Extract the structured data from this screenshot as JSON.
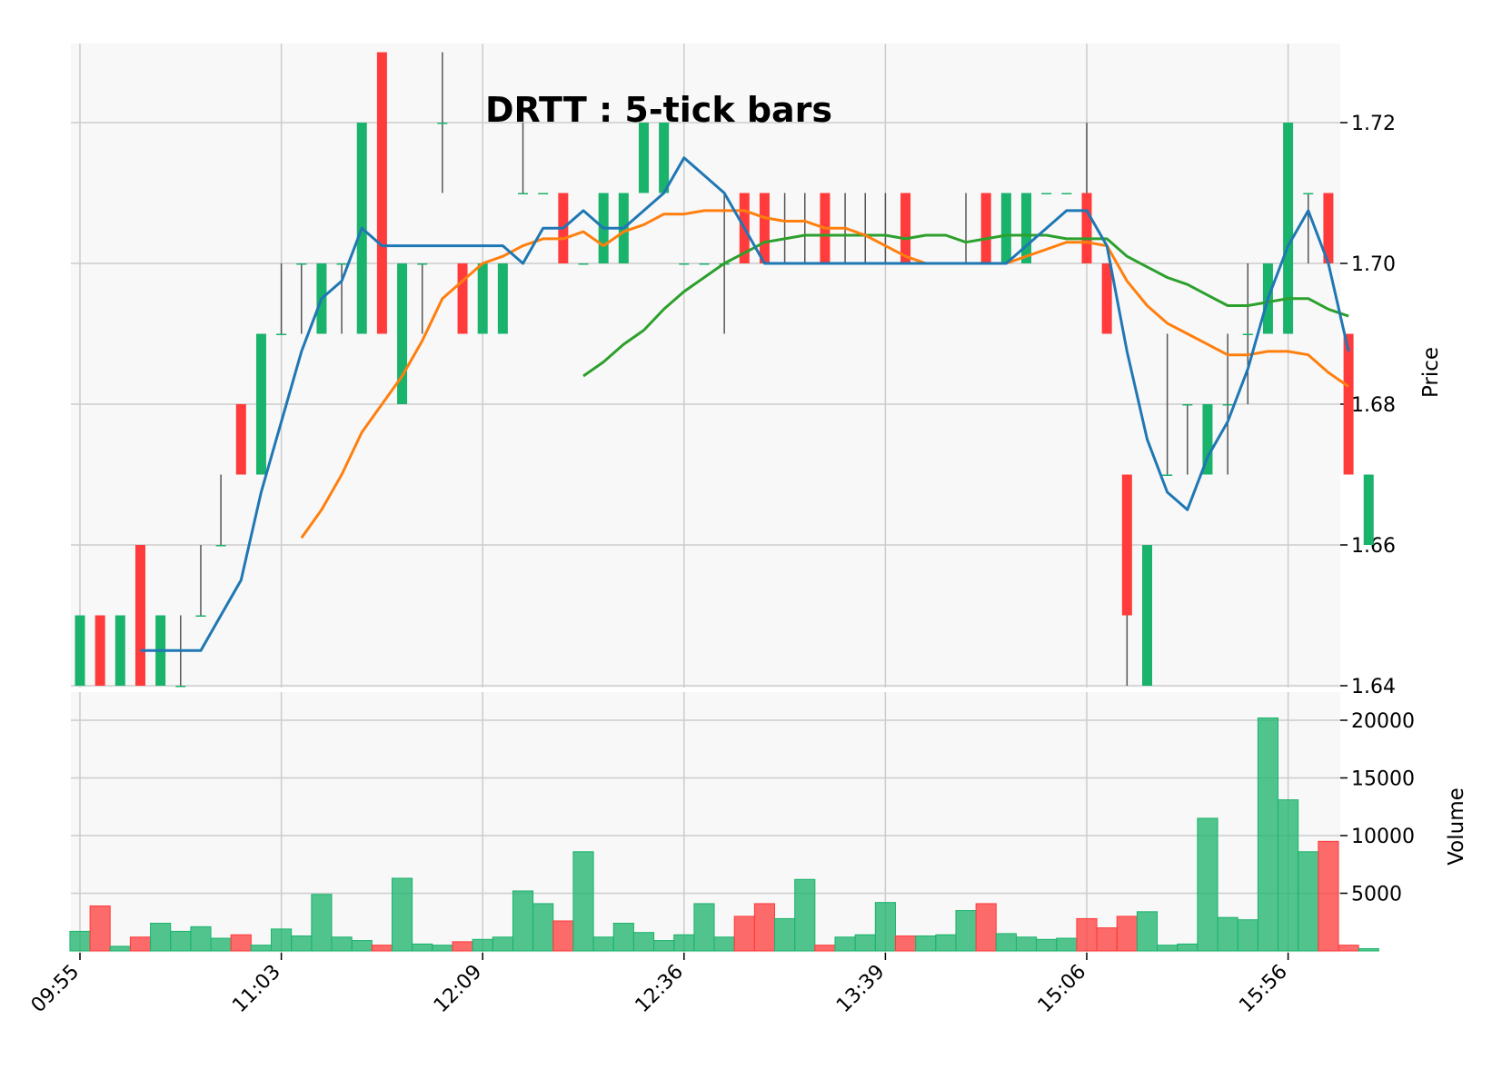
{
  "chart_data": {
    "type": "candlestick",
    "title": "DRTT : 5-tick bars",
    "price_ylabel": "Price",
    "volume_ylabel": "Volume",
    "price_ylim": [
      1.64,
      1.731
    ],
    "price_yticks": [
      1.64,
      1.66,
      1.68,
      1.7,
      1.72
    ],
    "price_ytick_labels": [
      "1.64",
      "1.66",
      "1.68",
      "1.70",
      "1.72"
    ],
    "volume_ylim": [
      0,
      22000
    ],
    "volume_yticks": [
      5000,
      10000,
      15000,
      20000
    ],
    "volume_ytick_labels": [
      "5000",
      "10000",
      "15000",
      "20000"
    ],
    "x_tick_index": [
      0,
      10,
      20,
      30,
      40,
      50,
      60
    ],
    "x_tick_labels": [
      "09:55",
      "11:03",
      "12:09",
      "12:36",
      "13:39",
      "15:06",
      "15:56"
    ],
    "grid": true,
    "colors": {
      "up": "#19b36b",
      "down": "#ff3b3b",
      "wick": "#555555",
      "ma_short": "#1f77b4",
      "ma_mid": "#ff7f0e",
      "ma_long": "#2ca02c",
      "panel_bg": "#f8f8f8",
      "grid": "#cccccc"
    },
    "ohlc": [
      [
        1.64,
        1.65,
        1.64,
        1.65
      ],
      [
        1.65,
        1.65,
        1.64,
        1.64
      ],
      [
        1.64,
        1.65,
        1.64,
        1.65
      ],
      [
        1.66,
        1.66,
        1.64,
        1.64
      ],
      [
        1.64,
        1.65,
        1.64,
        1.65
      ],
      [
        1.64,
        1.65,
        1.64,
        1.64
      ],
      [
        1.65,
        1.66,
        1.65,
        1.65
      ],
      [
        1.66,
        1.67,
        1.66,
        1.66
      ],
      [
        1.68,
        1.68,
        1.67,
        1.67
      ],
      [
        1.67,
        1.69,
        1.67,
        1.69
      ],
      [
        1.69,
        1.7,
        1.69,
        1.69
      ],
      [
        1.7,
        1.7,
        1.69,
        1.7
      ],
      [
        1.69,
        1.7,
        1.69,
        1.7
      ],
      [
        1.7,
        1.7,
        1.69,
        1.7
      ],
      [
        1.69,
        1.72,
        1.69,
        1.72
      ],
      [
        1.73,
        1.73,
        1.69,
        1.69
      ],
      [
        1.68,
        1.7,
        1.68,
        1.7
      ],
      [
        1.7,
        1.7,
        1.69,
        1.7
      ],
      [
        1.72,
        1.73,
        1.71,
        1.72
      ],
      [
        1.7,
        1.7,
        1.69,
        1.69
      ],
      [
        1.69,
        1.7,
        1.69,
        1.7
      ],
      [
        1.69,
        1.7,
        1.69,
        1.7
      ],
      [
        1.71,
        1.72,
        1.71,
        1.71
      ],
      [
        1.71,
        1.71,
        1.71,
        1.71
      ],
      [
        1.71,
        1.71,
        1.7,
        1.7
      ],
      [
        1.7,
        1.7,
        1.7,
        1.7
      ],
      [
        1.7,
        1.71,
        1.7,
        1.71
      ],
      [
        1.7,
        1.71,
        1.7,
        1.71
      ],
      [
        1.71,
        1.72,
        1.71,
        1.72
      ],
      [
        1.71,
        1.72,
        1.71,
        1.72
      ],
      [
        1.7,
        1.7,
        1.7,
        1.7
      ],
      [
        1.7,
        1.7,
        1.7,
        1.7
      ],
      [
        1.7,
        1.71,
        1.69,
        1.7
      ],
      [
        1.71,
        1.71,
        1.7,
        1.7
      ],
      [
        1.71,
        1.71,
        1.7,
        1.7
      ],
      [
        1.7,
        1.71,
        1.7,
        1.7
      ],
      [
        1.7,
        1.71,
        1.7,
        1.7
      ],
      [
        1.71,
        1.71,
        1.7,
        1.7
      ],
      [
        1.7,
        1.71,
        1.7,
        1.7
      ],
      [
        1.7,
        1.71,
        1.7,
        1.7
      ],
      [
        1.7,
        1.71,
        1.7,
        1.7
      ],
      [
        1.71,
        1.71,
        1.7,
        1.7
      ],
      [
        1.7,
        1.7,
        1.7,
        1.7
      ],
      [
        1.7,
        1.7,
        1.7,
        1.7
      ],
      [
        1.7,
        1.71,
        1.7,
        1.7
      ],
      [
        1.71,
        1.71,
        1.7,
        1.7
      ],
      [
        1.7,
        1.71,
        1.7,
        1.71
      ],
      [
        1.7,
        1.71,
        1.7,
        1.71
      ],
      [
        1.71,
        1.71,
        1.71,
        1.71
      ],
      [
        1.71,
        1.71,
        1.71,
        1.71
      ],
      [
        1.71,
        1.72,
        1.7,
        1.7
      ],
      [
        1.7,
        1.7,
        1.69,
        1.69
      ],
      [
        1.67,
        1.67,
        1.64,
        1.65
      ],
      [
        1.64,
        1.66,
        1.64,
        1.66
      ],
      [
        1.67,
        1.69,
        1.67,
        1.67
      ],
      [
        1.68,
        1.68,
        1.67,
        1.68
      ],
      [
        1.67,
        1.68,
        1.67,
        1.68
      ],
      [
        1.68,
        1.69,
        1.67,
        1.68
      ],
      [
        1.69,
        1.7,
        1.68,
        1.69
      ],
      [
        1.69,
        1.7,
        1.69,
        1.7
      ],
      [
        1.69,
        1.72,
        1.69,
        1.72
      ],
      [
        1.71,
        1.71,
        1.7,
        1.71
      ],
      [
        1.71,
        1.71,
        1.7,
        1.7
      ],
      [
        1.69,
        1.69,
        1.67,
        1.67
      ],
      [
        1.66,
        1.67,
        1.66,
        1.67
      ]
    ],
    "volume": [
      1700,
      3900,
      400,
      1200,
      2400,
      1700,
      2100,
      1100,
      1400,
      500,
      1900,
      1300,
      4900,
      1200,
      900,
      500,
      6300,
      600,
      500,
      800,
      1000,
      1200,
      5200,
      4100,
      2600,
      8600,
      1200,
      2400,
      1600,
      900,
      1400,
      4100,
      1200,
      3000,
      4100,
      2800,
      6200,
      500,
      1200,
      1400,
      4200,
      1300,
      1300,
      1400,
      3500,
      4100,
      1500,
      1200,
      1000,
      1100,
      2800,
      2000,
      3000,
      3400,
      500,
      600,
      11500,
      2900,
      2700,
      20200,
      13100,
      8600,
      9500,
      500,
      200
    ],
    "ma_short": [
      null,
      null,
      null,
      1.645,
      1.645,
      1.645,
      1.645,
      1.65,
      1.655,
      1.6675,
      1.6775,
      1.6875,
      1.695,
      1.6975,
      1.705,
      1.7025,
      1.7025,
      1.7025,
      1.7025,
      1.7025,
      1.7025,
      1.7025,
      1.7,
      1.705,
      1.705,
      1.7075,
      1.705,
      1.705,
      1.7075,
      1.71,
      1.715,
      1.7125,
      1.71,
      1.705,
      1.7,
      1.7,
      1.7,
      1.7,
      1.7,
      1.7,
      1.7,
      1.7,
      1.7,
      1.7,
      1.7,
      1.7,
      1.7,
      1.7025,
      1.705,
      1.7075,
      1.7075,
      1.7025,
      1.6875,
      1.675,
      1.6675,
      1.665,
      1.6725,
      1.6775,
      1.685,
      1.695,
      1.7025,
      1.7075,
      1.7,
      1.6875,
      null
    ],
    "ma_mid": [
      null,
      null,
      null,
      null,
      null,
      null,
      null,
      null,
      null,
      null,
      null,
      1.661,
      1.665,
      1.67,
      1.676,
      1.68,
      1.684,
      1.689,
      1.695,
      1.6975,
      1.7,
      1.701,
      1.7025,
      1.7035,
      1.7035,
      1.7045,
      1.7025,
      1.7045,
      1.7055,
      1.707,
      1.707,
      1.7075,
      1.7075,
      1.7075,
      1.7065,
      1.706,
      1.706,
      1.705,
      1.705,
      1.704,
      1.7025,
      1.701,
      1.7,
      1.7,
      1.7,
      1.7,
      1.7,
      1.701,
      1.702,
      1.703,
      1.703,
      1.7025,
      1.6975,
      1.694,
      1.6915,
      1.69,
      1.6885,
      1.687,
      1.687,
      1.6875,
      1.6875,
      1.687,
      1.6845,
      1.6825,
      null
    ],
    "ma_long": [
      null,
      null,
      null,
      null,
      null,
      null,
      null,
      null,
      null,
      null,
      null,
      null,
      null,
      null,
      null,
      null,
      null,
      null,
      null,
      null,
      null,
      null,
      null,
      null,
      null,
      1.684,
      1.686,
      1.6885,
      1.6905,
      1.6935,
      1.696,
      1.698,
      1.7,
      1.7015,
      1.703,
      1.7035,
      1.704,
      1.704,
      1.704,
      1.704,
      1.704,
      1.7035,
      1.704,
      1.704,
      1.703,
      1.7035,
      1.704,
      1.704,
      1.704,
      1.7035,
      1.7035,
      1.7035,
      1.701,
      1.6995,
      1.698,
      1.697,
      1.6955,
      1.694,
      1.694,
      1.6945,
      1.695,
      1.695,
      1.6935,
      1.6925,
      null
    ]
  }
}
